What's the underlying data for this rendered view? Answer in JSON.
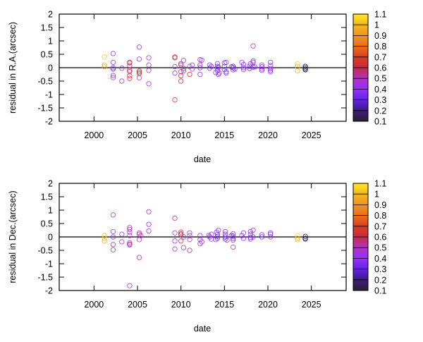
{
  "chart_data": [
    {
      "type": "scatter",
      "xlabel": "date",
      "ylabel": "residual in R.A.(arcsec)",
      "xlim": [
        1996,
        2029
      ],
      "ylim": [
        -2,
        2
      ],
      "xticks": [
        "2000",
        "2005",
        "2010",
        "2015",
        "2020",
        "2025"
      ],
      "yticks": [
        "2",
        "1.5",
        "1",
        "0.5",
        "0",
        "-0.5",
        "-1",
        "-1.5",
        "-2"
      ],
      "zero_line": true,
      "grid": false,
      "marker": "open-circle",
      "colorbar": {
        "range": [
          0.1,
          1.1
        ],
        "ticks": [
          "1.1",
          "1",
          "0.9",
          "0.8",
          "0.7",
          "0.6",
          "0.5",
          "0.4",
          "0.3",
          "0.2",
          "0.1"
        ],
        "palette": [
          "#2a2030",
          "#3c1c80",
          "#6424e6",
          "#9430ff",
          "#b034c0",
          "#c42a48",
          "#d8401a",
          "#e8701e",
          "#f09424",
          "#f4b424",
          "#ffe81c"
        ]
      },
      "points_format": [
        "date",
        "residual",
        "color_value"
      ],
      "points": [
        [
          2001.2,
          0.4,
          1.02
        ],
        [
          2001.2,
          0.1,
          1.0
        ],
        [
          2001.2,
          0.03,
          1.0
        ],
        [
          2002.2,
          0.53,
          0.45
        ],
        [
          2002.2,
          0.2,
          0.45
        ],
        [
          2002.2,
          0.0,
          0.38
        ],
        [
          2002.2,
          -0.05,
          0.38
        ],
        [
          2002.2,
          -0.29,
          0.42
        ],
        [
          2002.2,
          -0.37,
          0.45
        ],
        [
          2003.2,
          -0.02,
          0.45
        ],
        [
          2003.2,
          -0.5,
          0.45
        ],
        [
          2004.1,
          0.08,
          0.5
        ],
        [
          2004.1,
          0.2,
          0.65
        ],
        [
          2004.1,
          0.18,
          0.62
        ],
        [
          2004.1,
          -0.1,
          0.6
        ],
        [
          2004.1,
          -0.15,
          0.6
        ],
        [
          2004.1,
          -0.3,
          0.55
        ],
        [
          2004.1,
          -0.4,
          0.68
        ],
        [
          2005.2,
          0.77,
          0.45
        ],
        [
          2005.2,
          0.32,
          0.45
        ],
        [
          2005.2,
          -0.17,
          0.65
        ],
        [
          2005.2,
          -0.22,
          0.62
        ],
        [
          2005.2,
          -0.38,
          0.5
        ],
        [
          2005.2,
          -0.12,
          0.6
        ],
        [
          2006.3,
          0.37,
          0.45
        ],
        [
          2006.3,
          0.1,
          0.45
        ],
        [
          2006.3,
          -0.1,
          0.45
        ],
        [
          2006.3,
          -0.6,
          0.45
        ],
        [
          2009.3,
          0.4,
          0.65
        ],
        [
          2009.3,
          0.37,
          0.62
        ],
        [
          2009.3,
          -1.2,
          0.65
        ],
        [
          2009.3,
          0.04,
          0.45
        ],
        [
          2009.3,
          -0.2,
          0.45
        ],
        [
          2010.0,
          0.15,
          0.62
        ],
        [
          2010.0,
          0.1,
          0.5
        ],
        [
          2010.0,
          -0.15,
          0.6
        ],
        [
          2010.0,
          -0.3,
          0.6
        ],
        [
          2010.0,
          -0.5,
          0.65
        ],
        [
          2010.3,
          0.27,
          0.45
        ],
        [
          2010.3,
          -0.03,
          0.45
        ],
        [
          2010.3,
          -0.12,
          0.45
        ],
        [
          2011.0,
          -0.25,
          0.65
        ],
        [
          2011.0,
          0.05,
          0.45
        ],
        [
          2011.3,
          0.1,
          0.4
        ],
        [
          2011.3,
          -0.05,
          0.45
        ],
        [
          2012.2,
          0.3,
          0.45
        ],
        [
          2012.4,
          0.28,
          0.45
        ],
        [
          2012.2,
          -0.25,
          0.45
        ],
        [
          2012.2,
          0.0,
          0.4
        ],
        [
          2012.2,
          0.1,
          0.4
        ],
        [
          2013.3,
          0.1,
          0.38
        ],
        [
          2013.5,
          0.05,
          0.38
        ],
        [
          2013.3,
          -0.02,
          0.38
        ],
        [
          2014.2,
          0.15,
          0.38
        ],
        [
          2014.2,
          0.05,
          0.35
        ],
        [
          2014.2,
          -0.05,
          0.38
        ],
        [
          2014.2,
          -0.12,
          0.4
        ],
        [
          2014.0,
          -0.18,
          0.4
        ],
        [
          2014.4,
          -0.2,
          0.42
        ],
        [
          2014.3,
          -0.25,
          0.42
        ],
        [
          2014.3,
          0.02,
          0.35
        ],
        [
          2015.0,
          0.18,
          0.38
        ],
        [
          2015.2,
          0.2,
          0.4
        ],
        [
          2015.0,
          0.05,
          0.35
        ],
        [
          2015.0,
          -0.07,
          0.35
        ],
        [
          2015.2,
          -0.15,
          0.38
        ],
        [
          2015.2,
          -0.2,
          0.4
        ],
        [
          2016.0,
          0.0,
          0.35
        ],
        [
          2016.0,
          0.05,
          0.35
        ],
        [
          2016.2,
          -0.05,
          0.35
        ],
        [
          2016.0,
          -0.08,
          0.38
        ],
        [
          2015.8,
          0.03,
          0.36
        ],
        [
          2017.0,
          0.2,
          0.4
        ],
        [
          2017.2,
          0.12,
          0.38
        ],
        [
          2017.2,
          0.0,
          0.38
        ],
        [
          2017.2,
          -0.07,
          0.38
        ],
        [
          2017.9,
          0.05,
          0.35
        ],
        [
          2017.9,
          -0.03,
          0.36
        ],
        [
          2018.0,
          0.15,
          0.4
        ],
        [
          2018.3,
          0.81,
          0.45
        ],
        [
          2018.3,
          0.25,
          0.45
        ],
        [
          2018.3,
          0.2,
          0.42
        ],
        [
          2018.3,
          0.02,
          0.38
        ],
        [
          2018.5,
          0.03,
          0.38
        ],
        [
          2019.3,
          0.1,
          0.42
        ],
        [
          2019.3,
          0.03,
          0.4
        ],
        [
          2019.3,
          -0.05,
          0.4
        ],
        [
          2019.3,
          -0.1,
          0.42
        ],
        [
          2020.3,
          0.2,
          0.42
        ],
        [
          2020.3,
          0.08,
          0.42
        ],
        [
          2020.3,
          -0.03,
          0.42
        ],
        [
          2020.3,
          -0.1,
          0.42
        ],
        [
          2020.3,
          -0.15,
          0.42
        ],
        [
          2023.4,
          0.15,
          1.05
        ],
        [
          2023.4,
          0.05,
          1.0
        ],
        [
          2023.4,
          -0.12,
          1.0
        ],
        [
          2024.3,
          0.05,
          0.12
        ],
        [
          2024.3,
          0.0,
          0.12
        ],
        [
          2024.3,
          -0.05,
          0.12
        ],
        [
          2024.3,
          -0.08,
          0.12
        ]
      ]
    },
    {
      "type": "scatter",
      "xlabel": "date",
      "ylabel": "residual in Dec.(arcsec)",
      "xlim": [
        1996,
        2029
      ],
      "ylim": [
        -2,
        2
      ],
      "xticks": [
        "2000",
        "2005",
        "2010",
        "2015",
        "2020",
        "2025"
      ],
      "yticks": [
        "2",
        "1.5",
        "1",
        "0.5",
        "0",
        "-0.5",
        "-1",
        "-1.5",
        "-2"
      ],
      "zero_line": true,
      "grid": false,
      "marker": "open-circle",
      "colorbar": {
        "range": [
          0.1,
          1.1
        ],
        "ticks": [
          "1.1",
          "1",
          "0.9",
          "0.8",
          "0.7",
          "0.6",
          "0.5",
          "0.4",
          "0.3",
          "0.2",
          "0.1"
        ],
        "palette": [
          "#2a2030",
          "#3c1c80",
          "#6424e6",
          "#9430ff",
          "#b034c0",
          "#c42a48",
          "#d8401a",
          "#e8701e",
          "#f09424",
          "#f4b424",
          "#ffe81c"
        ]
      },
      "points_format": [
        "date",
        "residual",
        "color_value"
      ],
      "points": [
        [
          2001.2,
          0.05,
          1.02
        ],
        [
          2001.2,
          -0.05,
          1.0
        ],
        [
          2001.2,
          -0.15,
          1.0
        ],
        [
          2002.2,
          0.82,
          0.45
        ],
        [
          2002.2,
          0.2,
          0.42
        ],
        [
          2002.2,
          0.0,
          0.38
        ],
        [
          2002.2,
          -0.28,
          0.42
        ],
        [
          2002.2,
          -0.48,
          0.45
        ],
        [
          2003.2,
          0.1,
          0.42
        ],
        [
          2003.2,
          -0.18,
          0.45
        ],
        [
          2004.1,
          0.35,
          0.52
        ],
        [
          2004.1,
          0.28,
          0.52
        ],
        [
          2004.1,
          0.18,
          0.5
        ],
        [
          2004.1,
          0.05,
          0.5
        ],
        [
          2004.1,
          -0.22,
          0.52
        ],
        [
          2004.1,
          -0.27,
          0.5
        ],
        [
          2004.1,
          -0.3,
          0.52
        ],
        [
          2004.1,
          -1.82,
          0.5
        ],
        [
          2005.2,
          0.15,
          0.5
        ],
        [
          2005.2,
          0.1,
          0.55
        ],
        [
          2005.4,
          0.05,
          0.5
        ],
        [
          2005.2,
          -0.1,
          0.45
        ],
        [
          2005.2,
          -0.77,
          0.5
        ],
        [
          2006.3,
          0.94,
          0.45
        ],
        [
          2006.3,
          0.47,
          0.45
        ],
        [
          2006.3,
          0.22,
          0.45
        ],
        [
          2009.3,
          0.7,
          0.52
        ],
        [
          2009.3,
          0.15,
          0.45
        ],
        [
          2009.3,
          -0.15,
          0.45
        ],
        [
          2009.3,
          -0.45,
          0.45
        ],
        [
          2010.0,
          0.18,
          0.55
        ],
        [
          2010.0,
          0.12,
          0.6
        ],
        [
          2010.0,
          0.08,
          0.62
        ],
        [
          2010.0,
          -0.15,
          0.62
        ],
        [
          2010.3,
          -0.4,
          0.45
        ],
        [
          2010.3,
          0.0,
          0.42
        ],
        [
          2011.0,
          0.15,
          0.45
        ],
        [
          2011.0,
          -0.5,
          0.55
        ],
        [
          2011.0,
          0.05,
          0.45
        ],
        [
          2011.0,
          -0.1,
          0.45
        ],
        [
          2012.2,
          0.05,
          0.42
        ],
        [
          2012.2,
          -0.1,
          0.45
        ],
        [
          2012.2,
          -0.25,
          0.45
        ],
        [
          2012.4,
          -0.18,
          0.45
        ],
        [
          2013.2,
          0.05,
          0.38
        ],
        [
          2013.3,
          0.0,
          0.38
        ],
        [
          2013.5,
          0.1,
          0.4
        ],
        [
          2013.5,
          -0.08,
          0.42
        ],
        [
          2014.1,
          0.18,
          0.38
        ],
        [
          2014.2,
          0.1,
          0.35
        ],
        [
          2014.2,
          0.02,
          0.35
        ],
        [
          2014.2,
          -0.05,
          0.38
        ],
        [
          2014.3,
          0.25,
          0.42
        ],
        [
          2014.0,
          -0.1,
          0.38
        ],
        [
          2015.1,
          0.2,
          0.38
        ],
        [
          2015.1,
          0.1,
          0.35
        ],
        [
          2015.1,
          0.0,
          0.35
        ],
        [
          2015.1,
          -0.08,
          0.38
        ],
        [
          2015.3,
          -0.12,
          0.4
        ],
        [
          2016.0,
          0.12,
          0.36
        ],
        [
          2016.0,
          0.03,
          0.35
        ],
        [
          2016.0,
          -0.05,
          0.36
        ],
        [
          2016.0,
          -0.12,
          0.38
        ],
        [
          2016.0,
          -0.38,
          0.45
        ],
        [
          2015.8,
          0.05,
          0.36
        ],
        [
          2017.0,
          0.05,
          0.38
        ],
        [
          2017.2,
          0.15,
          0.42
        ],
        [
          2017.2,
          -0.05,
          0.4
        ],
        [
          2018.0,
          0.2,
          0.4
        ],
        [
          2018.0,
          0.1,
          0.38
        ],
        [
          2018.0,
          -0.02,
          0.38
        ],
        [
          2018.0,
          -0.08,
          0.4
        ],
        [
          2018.3,
          0.25,
          0.45
        ],
        [
          2018.3,
          0.0,
          0.42
        ],
        [
          2019.3,
          0.08,
          0.38
        ],
        [
          2019.3,
          0.0,
          0.38
        ],
        [
          2020.3,
          0.15,
          0.4
        ],
        [
          2020.3,
          0.1,
          0.4
        ],
        [
          2020.3,
          0.0,
          0.42
        ],
        [
          2023.4,
          0.05,
          1.05
        ],
        [
          2023.4,
          -0.05,
          1.0
        ],
        [
          2023.4,
          -0.1,
          1.0
        ],
        [
          2024.3,
          0.02,
          0.12
        ],
        [
          2024.3,
          -0.05,
          0.12
        ],
        [
          2024.3,
          -0.08,
          0.12
        ]
      ]
    }
  ]
}
